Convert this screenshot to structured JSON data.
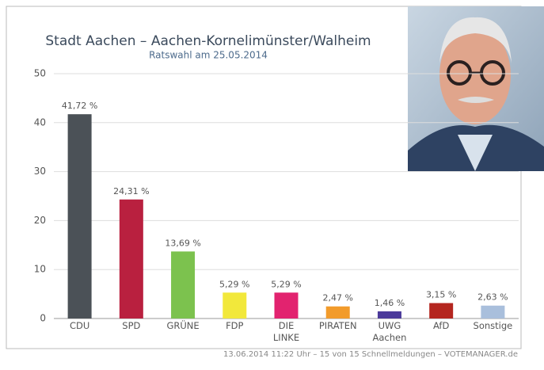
{
  "chart_data": {
    "type": "bar",
    "title": "Stadt Aachen – Aachen-Kornelimünster/Walheim",
    "subtitle": "Ratswahl am 25.05.2014",
    "footer": "13.06.2014 11:22 Uhr – 15 von 15 Schnellmeldungen – VOTEMANAGER.de",
    "categories": [
      "CDU",
      "SPD",
      "GRÜNE",
      "FDP",
      "DIE\nLINKE",
      "PIRATEN",
      "UWG\nAachen",
      "AfD",
      "Sonstige"
    ],
    "values": [
      41.72,
      24.31,
      13.69,
      5.29,
      5.29,
      2.47,
      1.46,
      3.15,
      2.63
    ],
    "value_labels": [
      "41,72 %",
      "24,31 %",
      "13,69 %",
      "5,29 %",
      "5,29 %",
      "2,47 %",
      "1,46 %",
      "3,15 %",
      "2,63 %"
    ],
    "colors": [
      "#4b5157",
      "#b9203f",
      "#7cc24e",
      "#f2e83b",
      "#e2236f",
      "#f29b2b",
      "#4b3a9a",
      "#b4261f",
      "#a9bfdc"
    ],
    "ylim": [
      0,
      50
    ],
    "yticks": [
      0,
      10,
      20,
      30,
      40,
      50
    ],
    "grid": true
  }
}
